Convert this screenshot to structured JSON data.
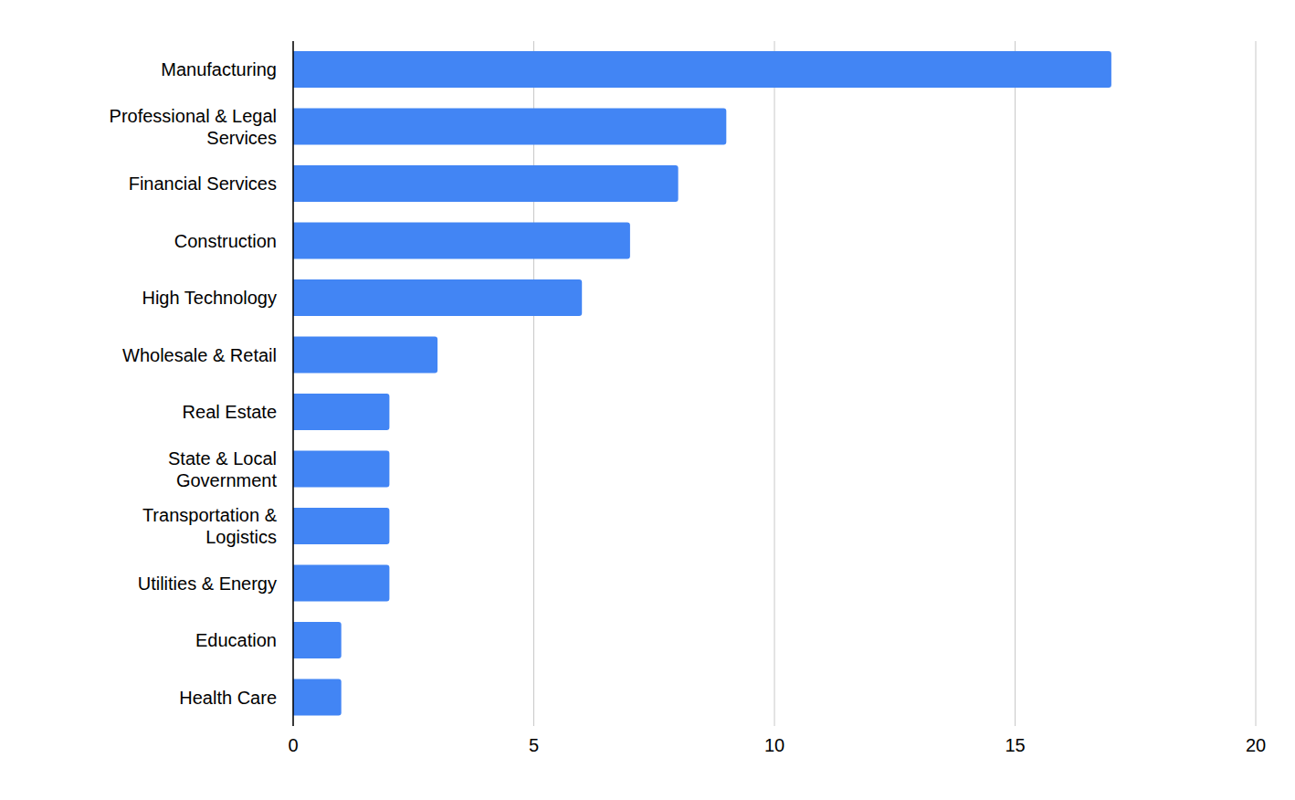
{
  "chart_data": {
    "type": "bar",
    "orientation": "horizontal",
    "categories": [
      "Manufacturing",
      "Professional & Legal Services",
      "Financial Services",
      "Construction",
      "High Technology",
      "Wholesale & Retail",
      "Real Estate",
      "State & Local Government",
      "Transportation & Logistics",
      "Utilities & Energy",
      "Education",
      "Health Care"
    ],
    "values": [
      17,
      9,
      8,
      7,
      6,
      3,
      2,
      2,
      2,
      2,
      1,
      1
    ],
    "color": "#4285f4",
    "xlim": [
      0,
      20
    ],
    "xticks": [
      0,
      5,
      10,
      15,
      20
    ],
    "grid": true
  }
}
